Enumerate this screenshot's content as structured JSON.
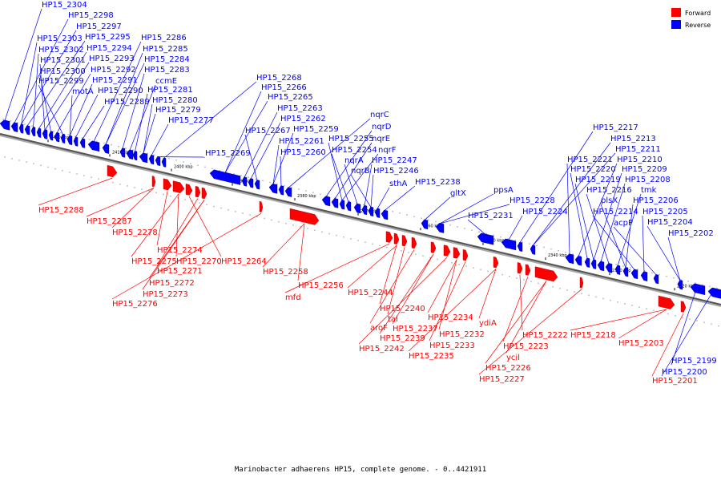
{
  "caption": "Marinobacter adhaerens HP15, complete genome. - 0..4421911",
  "colors": {
    "forward": "#ff0000",
    "reverse": "#0000ff",
    "axis": "#555555"
  },
  "legend": [
    {
      "label": "Forward",
      "color": "#ff0000"
    },
    {
      "label": "Reverse",
      "color": "#0000ff"
    }
  ],
  "axis_ticks": [
    "2420 kbp",
    "2410 kbp",
    "2400 kbp",
    "2390 kbp",
    "2380 kbp",
    "2370 kbp",
    "2360 kbp",
    "2350 kbp",
    "2340 kbp",
    "2330 kbp",
    "2320 kbp"
  ],
  "reverse_labels": [
    "HP15_2304",
    "HP15_2298",
    "HP15_2297",
    "HP15_2303",
    "HP15_2295",
    "HP15_2302",
    "HP15_2294",
    "HP15_2301",
    "HP15_2293",
    "HP15_2300",
    "HP15_2292",
    "HP15_2299",
    "HP15_2291",
    "motA",
    "HP15_2290",
    "HP15_2289",
    "HP15_2286",
    "HP15_2285",
    "HP15_2284",
    "HP15_2283",
    "ccmE",
    "HP15_2281",
    "HP15_2280",
    "HP15_2279",
    "HP15_2277",
    "HP15_2269",
    "HP15_2268",
    "HP15_2266",
    "HP15_2265",
    "HP15_2263",
    "HP15_2262",
    "HP15_2267",
    "HP15_2259",
    "HP15_2261",
    "HP15_2260",
    "nqrC",
    "nqrD",
    "nqrE",
    "HP15_2255",
    "nqrF",
    "HP15_2254",
    "nqrA",
    "HP15_2247",
    "nqrB",
    "HP15_2246",
    "sthA",
    "HP15_2238",
    "gltX",
    "ppsA",
    "HP15_2228",
    "HP15_2231",
    "HP15_2224",
    "HP15_2217",
    "HP15_2213",
    "HP15_2211",
    "HP15_2221",
    "HP15_2210",
    "HP15_2220",
    "HP15_2209",
    "HP15_2219",
    "HP15_2208",
    "HP15_2216",
    "tmk",
    "plsX",
    "HP15_2206",
    "HP15_2214",
    "HP15_2205",
    "acpP",
    "HP15_2204",
    "HP15_2202",
    "HP15_2199",
    "HP15_2200"
  ],
  "forward_labels": [
    "HP15_2288",
    "HP15_2287",
    "HP15_2278",
    "HP15_2274",
    "HP15_2275",
    "HP15_2270",
    "HP15_2264",
    "HP15_2271",
    "HP15_2272",
    "HP15_2273",
    "HP15_2276",
    "HP15_2258",
    "HP15_2256",
    "mfd",
    "HP15_2244",
    "HP15_2240",
    "tal",
    "aroF",
    "HP15_2237",
    "HP15_2239",
    "HP15_2242",
    "HP15_2234",
    "HP15_2232",
    "HP15_2233",
    "HP15_2235",
    "ydiA",
    "HP15_2222",
    "HP15_2223",
    "ycil",
    "HP15_2226",
    "HP15_2227",
    "HP15_2218",
    "HP15_2203",
    "HP15_2201"
  ]
}
